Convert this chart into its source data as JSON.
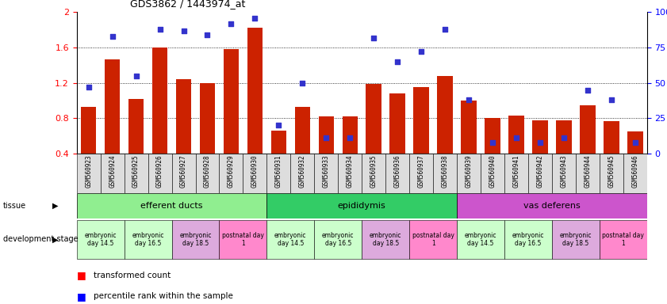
{
  "title": "GDS3862 / 1443974_at",
  "samples": [
    "GSM560923",
    "GSM560924",
    "GSM560925",
    "GSM560926",
    "GSM560927",
    "GSM560928",
    "GSM560929",
    "GSM560930",
    "GSM560931",
    "GSM560932",
    "GSM560933",
    "GSM560934",
    "GSM560935",
    "GSM560936",
    "GSM560937",
    "GSM560938",
    "GSM560939",
    "GSM560940",
    "GSM560941",
    "GSM560942",
    "GSM560943",
    "GSM560944",
    "GSM560945",
    "GSM560946"
  ],
  "transformed_count": [
    0.93,
    1.47,
    1.02,
    1.6,
    1.24,
    1.2,
    1.58,
    1.82,
    0.66,
    0.93,
    0.82,
    0.82,
    1.19,
    1.08,
    1.15,
    1.28,
    1.0,
    0.8,
    0.83,
    0.78,
    0.78,
    0.95,
    0.77,
    0.65
  ],
  "percentile_rank": [
    47,
    83,
    55,
    88,
    87,
    84,
    92,
    96,
    20,
    50,
    11,
    11,
    82,
    65,
    72,
    88,
    38,
    8,
    11,
    8,
    11,
    45,
    38,
    8
  ],
  "tissue_groups": [
    {
      "label": "efferent ducts",
      "start": 0,
      "end": 7,
      "color": "#90EE90"
    },
    {
      "label": "epididymis",
      "start": 8,
      "end": 15,
      "color": "#33CC66"
    },
    {
      "label": "vas deferens",
      "start": 16,
      "end": 23,
      "color": "#CC55CC"
    }
  ],
  "dev_stages": [
    {
      "label": "embryonic\nday 14.5",
      "start": 0,
      "end": 1,
      "color": "#CCFFCC"
    },
    {
      "label": "embryonic\nday 16.5",
      "start": 2,
      "end": 3,
      "color": "#CCFFCC"
    },
    {
      "label": "embryonic\nday 18.5",
      "start": 4,
      "end": 5,
      "color": "#DDAADD"
    },
    {
      "label": "postnatal day\n1",
      "start": 6,
      "end": 7,
      "color": "#FF88CC"
    },
    {
      "label": "embryonic\nday 14.5",
      "start": 8,
      "end": 9,
      "color": "#CCFFCC"
    },
    {
      "label": "embryonic\nday 16.5",
      "start": 10,
      "end": 11,
      "color": "#CCFFCC"
    },
    {
      "label": "embryonic\nday 18.5",
      "start": 12,
      "end": 13,
      "color": "#DDAADD"
    },
    {
      "label": "postnatal day\n1",
      "start": 14,
      "end": 15,
      "color": "#FF88CC"
    },
    {
      "label": "embryonic\nday 14.5",
      "start": 16,
      "end": 17,
      "color": "#CCFFCC"
    },
    {
      "label": "embryonic\nday 16.5",
      "start": 18,
      "end": 19,
      "color": "#CCFFCC"
    },
    {
      "label": "embryonic\nday 18.5",
      "start": 20,
      "end": 21,
      "color": "#DDAADD"
    },
    {
      "label": "postnatal day\n1",
      "start": 22,
      "end": 23,
      "color": "#FF88CC"
    }
  ],
  "bar_color": "#CC2200",
  "dot_color": "#3333CC",
  "bar_bottom": 0.4,
  "ylim": [
    0.4,
    2.0
  ],
  "yticks": [
    0.4,
    0.8,
    1.2,
    1.6,
    2.0
  ],
  "right_yticks": [
    0,
    25,
    50,
    75,
    100
  ],
  "right_ytick_labels": [
    "0",
    "25",
    "50",
    "75",
    "100%"
  ]
}
